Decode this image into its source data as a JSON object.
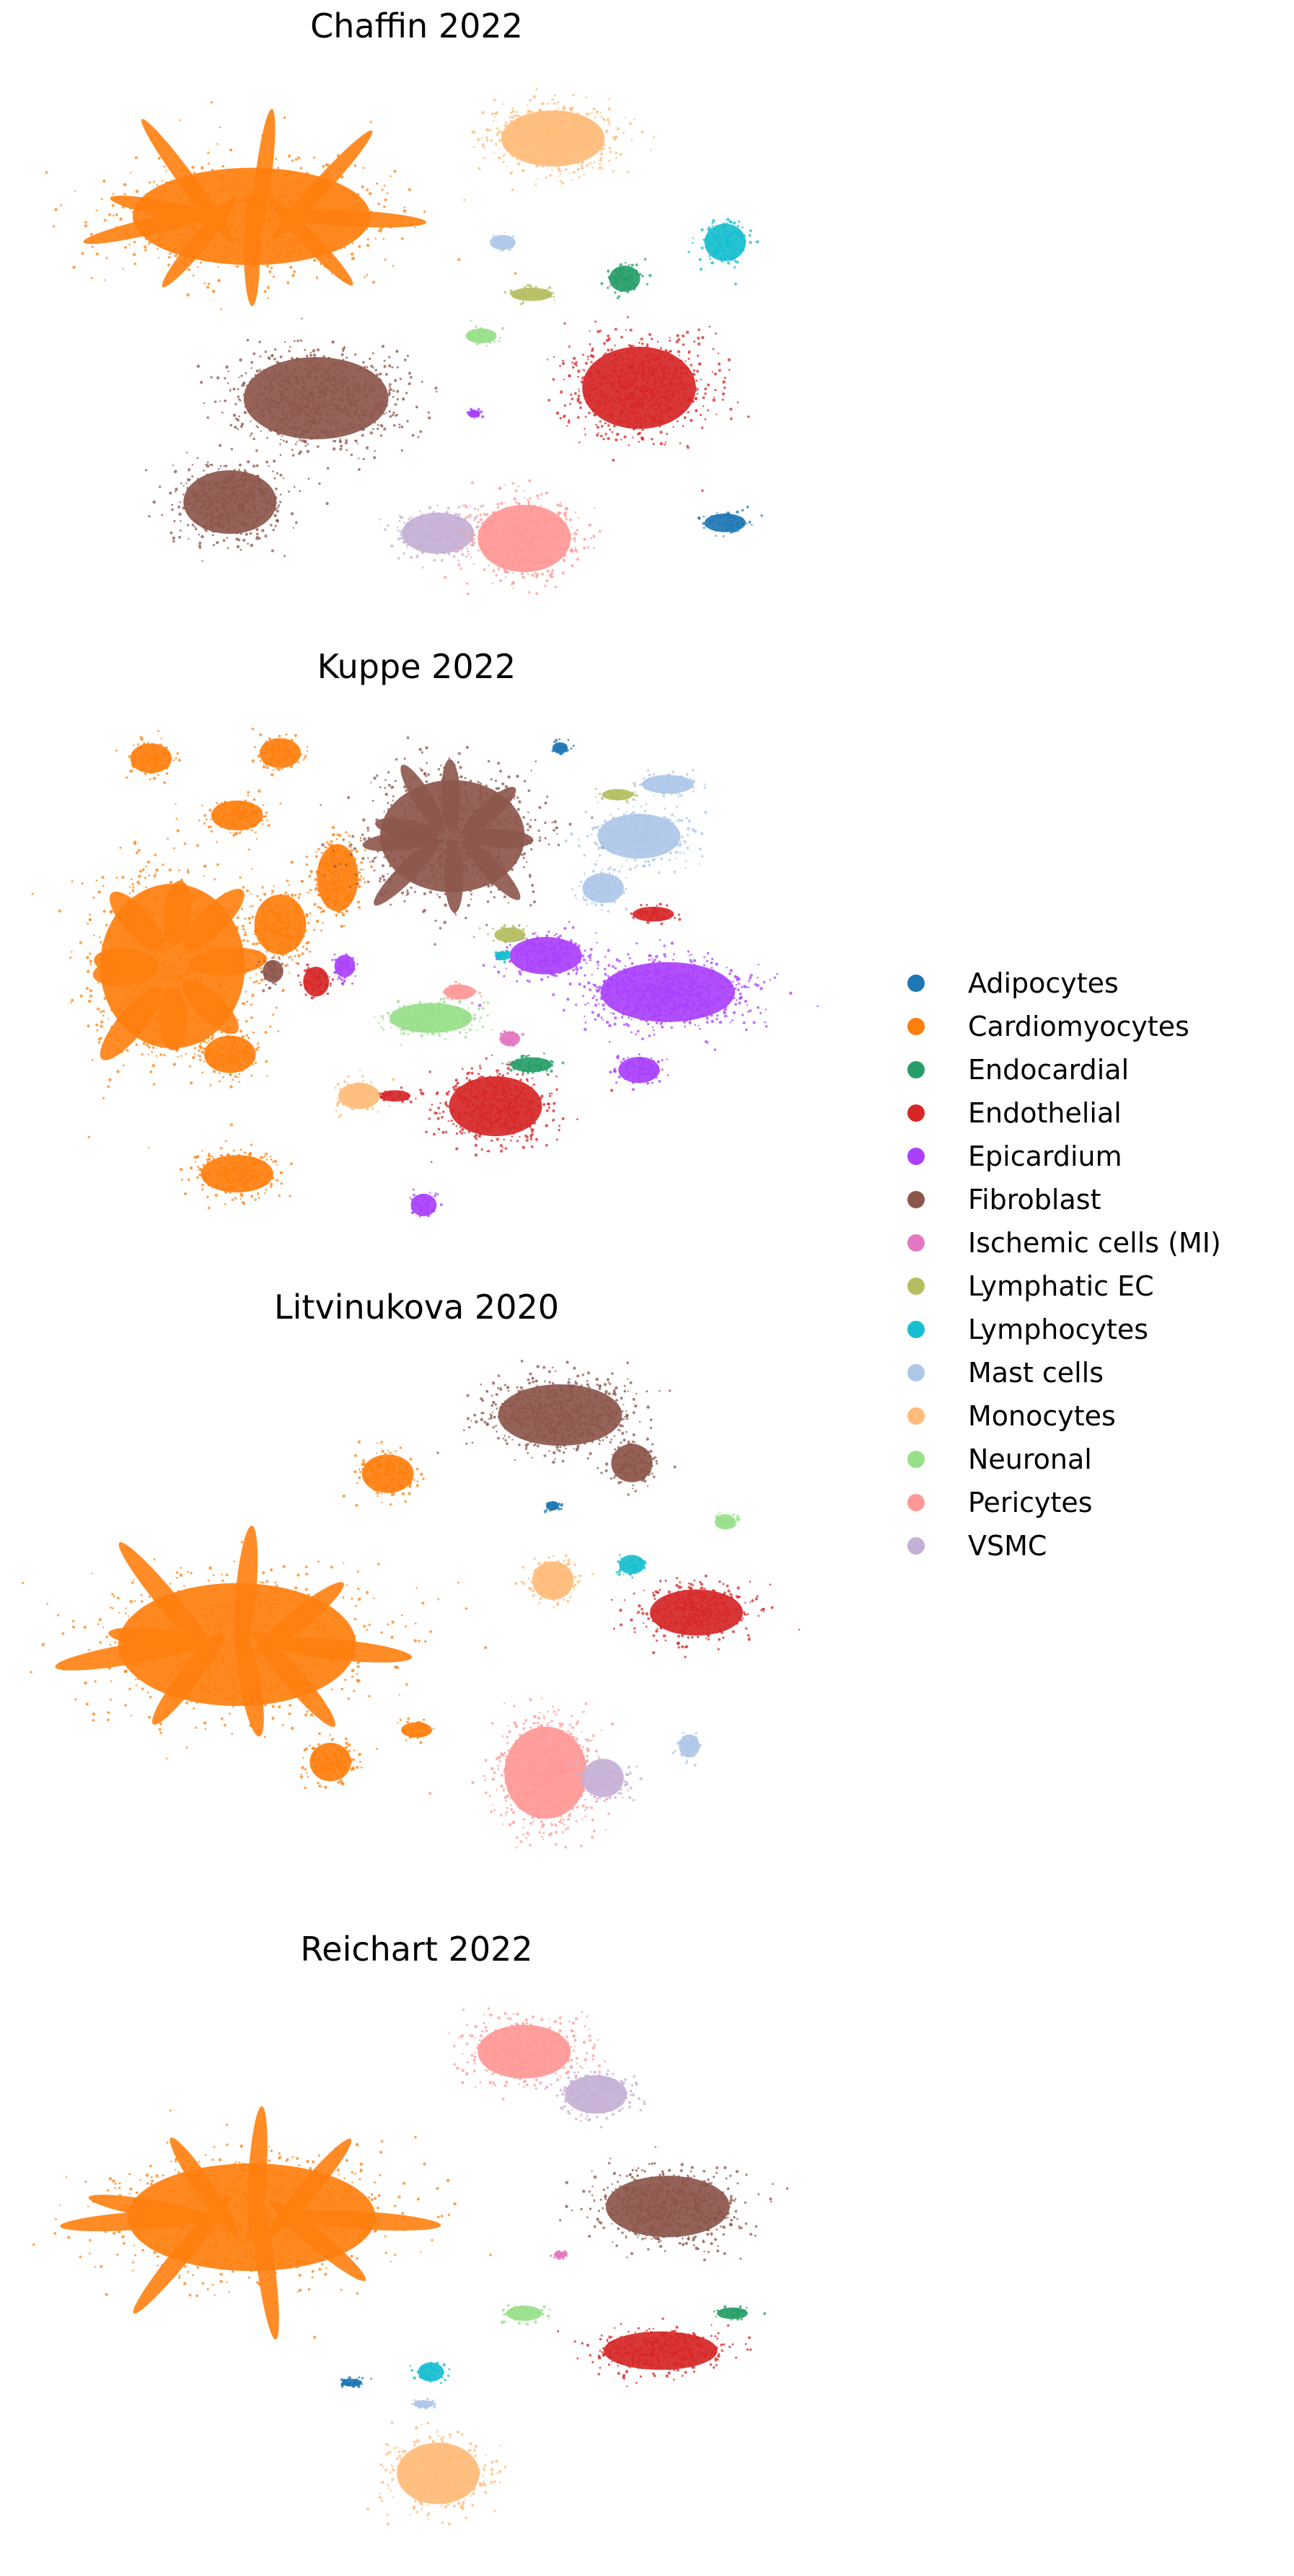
{
  "chart_data": {
    "type": "scatter",
    "legend_placement": "right",
    "axes_visible": false,
    "grid": false,
    "marker": "small dots (UMAP embedding)",
    "categories": [
      {
        "name": "Adipocytes",
        "color": "#1f77b4"
      },
      {
        "name": "Cardiomyocytes",
        "color": "#ff7f0e"
      },
      {
        "name": "Endocardial",
        "color": "#279e68"
      },
      {
        "name": "Endothelial",
        "color": "#d62728"
      },
      {
        "name": "Epicardium",
        "color": "#aa40fc"
      },
      {
        "name": "Fibroblast",
        "color": "#8c564b"
      },
      {
        "name": "Ischemic cells (MI)",
        "color": "#e377c2"
      },
      {
        "name": "Lymphatic EC",
        "color": "#b5bd61"
      },
      {
        "name": "Lymphocytes",
        "color": "#17becf"
      },
      {
        "name": "Mast cells",
        "color": "#aec7e8"
      },
      {
        "name": "Monocytes",
        "color": "#ffbb78"
      },
      {
        "name": "Neuronal",
        "color": "#98df8a"
      },
      {
        "name": "Pericytes",
        "color": "#ff9896"
      },
      {
        "name": "VSMC",
        "color": "#c5b0d5"
      }
    ],
    "panels": [
      {
        "title": "Chaffin 2022",
        "clusters": [
          {
            "cat": "Cardiomyocytes",
            "x": 0.27,
            "y": 0.25,
            "rx": 0.23,
            "ry": 0.13,
            "shape": "fan"
          },
          {
            "cat": "Monocytes",
            "x": 0.69,
            "y": 0.1,
            "rx": 0.1,
            "ry": 0.075
          },
          {
            "cat": "Lymphocytes",
            "x": 0.93,
            "y": 0.3,
            "rx": 0.04,
            "ry": 0.05
          },
          {
            "cat": "Mast cells",
            "x": 0.62,
            "y": 0.3,
            "rx": 0.025,
            "ry": 0.02
          },
          {
            "cat": "Endocardial",
            "x": 0.79,
            "y": 0.37,
            "rx": 0.03,
            "ry": 0.035
          },
          {
            "cat": "Lymphatic EC",
            "x": 0.66,
            "y": 0.4,
            "rx": 0.04,
            "ry": 0.018
          },
          {
            "cat": "Neuronal",
            "x": 0.59,
            "y": 0.48,
            "rx": 0.03,
            "ry": 0.02
          },
          {
            "cat": "Endothelial",
            "x": 0.81,
            "y": 0.58,
            "rx": 0.11,
            "ry": 0.11
          },
          {
            "cat": "Fibroblast",
            "x": 0.36,
            "y": 0.6,
            "rx": 0.14,
            "ry": 0.11
          },
          {
            "cat": "Fibroblast",
            "x": 0.24,
            "y": 0.8,
            "rx": 0.09,
            "ry": 0.085
          },
          {
            "cat": "VSMC",
            "x": 0.53,
            "y": 0.86,
            "rx": 0.07,
            "ry": 0.055
          },
          {
            "cat": "Pericytes",
            "x": 0.65,
            "y": 0.87,
            "rx": 0.09,
            "ry": 0.09
          },
          {
            "cat": "Adipocytes",
            "x": 0.93,
            "y": 0.84,
            "rx": 0.04,
            "ry": 0.025
          },
          {
            "cat": "Epicardium",
            "x": 0.58,
            "y": 0.63,
            "rx": 0.012,
            "ry": 0.01
          }
        ]
      },
      {
        "title": "Kuppe 2022",
        "clusters": [
          {
            "cat": "Cardiomyocytes",
            "x": 0.16,
            "y": 0.46,
            "rx": 0.14,
            "ry": 0.22,
            "shape": "fan"
          },
          {
            "cat": "Cardiomyocytes",
            "x": 0.13,
            "y": 0.06,
            "rx": 0.04,
            "ry": 0.04
          },
          {
            "cat": "Cardiomyocytes",
            "x": 0.31,
            "y": 0.05,
            "rx": 0.04,
            "ry": 0.04
          },
          {
            "cat": "Cardiomyocytes",
            "x": 0.25,
            "y": 0.17,
            "rx": 0.05,
            "ry": 0.04
          },
          {
            "cat": "Cardiomyocytes",
            "x": 0.31,
            "y": 0.38,
            "rx": 0.05,
            "ry": 0.08
          },
          {
            "cat": "Cardiomyocytes",
            "x": 0.39,
            "y": 0.29,
            "rx": 0.04,
            "ry": 0.09
          },
          {
            "cat": "Cardiomyocytes",
            "x": 0.24,
            "y": 0.63,
            "rx": 0.05,
            "ry": 0.05
          },
          {
            "cat": "Cardiomyocytes",
            "x": 0.25,
            "y": 0.86,
            "rx": 0.07,
            "ry": 0.05
          },
          {
            "cat": "Fibroblast",
            "x": 0.55,
            "y": 0.21,
            "rx": 0.14,
            "ry": 0.15,
            "shape": "fan"
          },
          {
            "cat": "Fibroblast",
            "x": 0.3,
            "y": 0.47,
            "rx": 0.02,
            "ry": 0.03
          },
          {
            "cat": "Mast cells",
            "x": 0.81,
            "y": 0.21,
            "rx": 0.08,
            "ry": 0.06
          },
          {
            "cat": "Mast cells",
            "x": 0.85,
            "y": 0.11,
            "rx": 0.05,
            "ry": 0.025
          },
          {
            "cat": "Mast cells",
            "x": 0.76,
            "y": 0.31,
            "rx": 0.04,
            "ry": 0.04
          },
          {
            "cat": "Epicardium",
            "x": 0.85,
            "y": 0.51,
            "rx": 0.13,
            "ry": 0.08
          },
          {
            "cat": "Epicardium",
            "x": 0.68,
            "y": 0.44,
            "rx": 0.07,
            "ry": 0.05
          },
          {
            "cat": "Epicardium",
            "x": 0.81,
            "y": 0.66,
            "rx": 0.04,
            "ry": 0.035
          },
          {
            "cat": "Epicardium",
            "x": 0.51,
            "y": 0.92,
            "rx": 0.025,
            "ry": 0.03
          },
          {
            "cat": "Epicardium",
            "x": 0.4,
            "y": 0.46,
            "rx": 0.02,
            "ry": 0.03
          },
          {
            "cat": "Endothelial",
            "x": 0.61,
            "y": 0.73,
            "rx": 0.09,
            "ry": 0.08
          },
          {
            "cat": "Endothelial",
            "x": 0.83,
            "y": 0.36,
            "rx": 0.04,
            "ry": 0.02
          },
          {
            "cat": "Endothelial",
            "x": 0.36,
            "y": 0.49,
            "rx": 0.025,
            "ry": 0.04
          },
          {
            "cat": "Endothelial",
            "x": 0.47,
            "y": 0.71,
            "rx": 0.03,
            "ry": 0.015
          },
          {
            "cat": "Neuronal",
            "x": 0.52,
            "y": 0.56,
            "rx": 0.08,
            "ry": 0.04
          },
          {
            "cat": "Endocardial",
            "x": 0.66,
            "y": 0.65,
            "rx": 0.04,
            "ry": 0.02
          },
          {
            "cat": "Lymphatic EC",
            "x": 0.63,
            "y": 0.4,
            "rx": 0.03,
            "ry": 0.02
          },
          {
            "cat": "Lymphatic EC",
            "x": 0.78,
            "y": 0.13,
            "rx": 0.03,
            "ry": 0.015
          },
          {
            "cat": "Monocytes",
            "x": 0.42,
            "y": 0.71,
            "rx": 0.04,
            "ry": 0.035
          },
          {
            "cat": "Pericytes",
            "x": 0.56,
            "y": 0.51,
            "rx": 0.03,
            "ry": 0.02
          },
          {
            "cat": "Ischemic cells (MI)",
            "x": 0.63,
            "y": 0.6,
            "rx": 0.02,
            "ry": 0.02
          },
          {
            "cat": "Adipocytes",
            "x": 0.7,
            "y": 0.04,
            "rx": 0.015,
            "ry": 0.015
          },
          {
            "cat": "Lymphocytes",
            "x": 0.62,
            "y": 0.44,
            "rx": 0.015,
            "ry": 0.012
          }
        ]
      },
      {
        "title": "Litvinukova 2020",
        "clusters": [
          {
            "cat": "Cardiomyocytes",
            "x": 0.25,
            "y": 0.52,
            "rx": 0.23,
            "ry": 0.16,
            "shape": "fan"
          },
          {
            "cat": "Cardiomyocytes",
            "x": 0.46,
            "y": 0.2,
            "rx": 0.05,
            "ry": 0.05
          },
          {
            "cat": "Cardiomyocytes",
            "x": 0.38,
            "y": 0.74,
            "rx": 0.04,
            "ry": 0.05
          },
          {
            "cat": "Cardiomyocytes",
            "x": 0.5,
            "y": 0.68,
            "rx": 0.03,
            "ry": 0.02
          },
          {
            "cat": "Fibroblast",
            "x": 0.7,
            "y": 0.09,
            "rx": 0.12,
            "ry": 0.08
          },
          {
            "cat": "Fibroblast",
            "x": 0.8,
            "y": 0.18,
            "rx": 0.04,
            "ry": 0.05
          },
          {
            "cat": "Monocytes",
            "x": 0.69,
            "y": 0.4,
            "rx": 0.04,
            "ry": 0.05
          },
          {
            "cat": "Lymphocytes",
            "x": 0.8,
            "y": 0.37,
            "rx": 0.025,
            "ry": 0.025
          },
          {
            "cat": "Endothelial",
            "x": 0.89,
            "y": 0.46,
            "rx": 0.09,
            "ry": 0.06
          },
          {
            "cat": "Neuronal",
            "x": 0.93,
            "y": 0.29,
            "rx": 0.02,
            "ry": 0.02
          },
          {
            "cat": "Pericytes",
            "x": 0.68,
            "y": 0.76,
            "rx": 0.08,
            "ry": 0.12
          },
          {
            "cat": "VSMC",
            "x": 0.76,
            "y": 0.77,
            "rx": 0.04,
            "ry": 0.05
          },
          {
            "cat": "Mast cells",
            "x": 0.88,
            "y": 0.71,
            "rx": 0.02,
            "ry": 0.03
          },
          {
            "cat": "Adipocytes",
            "x": 0.69,
            "y": 0.26,
            "rx": 0.012,
            "ry": 0.012
          }
        ]
      },
      {
        "title": "Reichart 2022",
        "clusters": [
          {
            "cat": "Cardiomyocytes",
            "x": 0.27,
            "y": 0.39,
            "rx": 0.24,
            "ry": 0.14,
            "shape": "fan"
          },
          {
            "cat": "Pericytes",
            "x": 0.65,
            "y": 0.08,
            "rx": 0.09,
            "ry": 0.07
          },
          {
            "cat": "VSMC",
            "x": 0.75,
            "y": 0.16,
            "rx": 0.06,
            "ry": 0.05
          },
          {
            "cat": "Fibroblast",
            "x": 0.85,
            "y": 0.37,
            "rx": 0.12,
            "ry": 0.08
          },
          {
            "cat": "Endocardial",
            "x": 0.94,
            "y": 0.57,
            "rx": 0.03,
            "ry": 0.015
          },
          {
            "cat": "Neuronal",
            "x": 0.65,
            "y": 0.57,
            "rx": 0.035,
            "ry": 0.02
          },
          {
            "cat": "Endothelial",
            "x": 0.84,
            "y": 0.64,
            "rx": 0.11,
            "ry": 0.05
          },
          {
            "cat": "Lymphocytes",
            "x": 0.52,
            "y": 0.68,
            "rx": 0.025,
            "ry": 0.025
          },
          {
            "cat": "Adipocytes",
            "x": 0.41,
            "y": 0.7,
            "rx": 0.02,
            "ry": 0.01
          },
          {
            "cat": "Monocytes",
            "x": 0.53,
            "y": 0.87,
            "rx": 0.08,
            "ry": 0.08
          },
          {
            "cat": "Mast cells",
            "x": 0.51,
            "y": 0.74,
            "rx": 0.02,
            "ry": 0.01
          },
          {
            "cat": "Ischemic cells (MI)",
            "x": 0.7,
            "y": 0.46,
            "rx": 0.012,
            "ry": 0.008
          }
        ]
      }
    ]
  }
}
